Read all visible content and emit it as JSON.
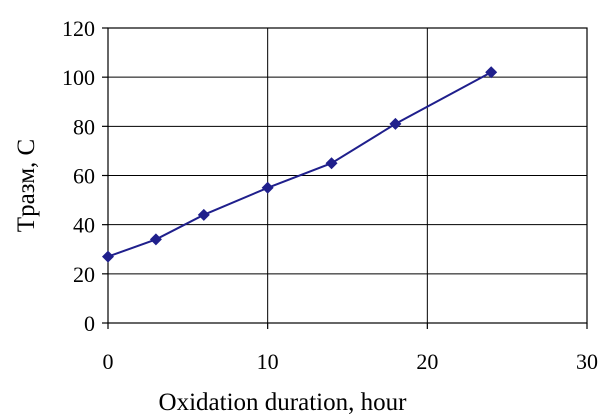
{
  "chart_data": {
    "type": "line",
    "xlabel": "Oxidation duration, hour",
    "ylabel": "Tразм, С",
    "xlim": [
      0,
      30
    ],
    "ylim": [
      0,
      120
    ],
    "x_ticks": [
      0,
      10,
      20,
      30
    ],
    "y_ticks": [
      0,
      20,
      40,
      60,
      80,
      100,
      120
    ],
    "grid": true,
    "series": [
      {
        "color": "#1f1f8c",
        "marker": "diamond",
        "x": [
          0,
          3,
          6,
          10,
          14,
          18,
          24
        ],
        "y": [
          27,
          34,
          44,
          55,
          65,
          81,
          102
        ]
      }
    ]
  }
}
